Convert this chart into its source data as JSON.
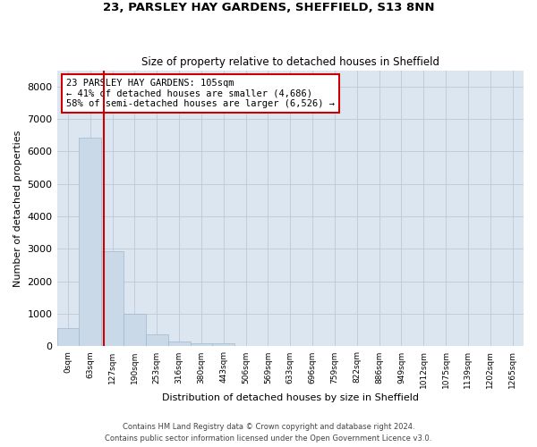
{
  "title1": "23, PARSLEY HAY GARDENS, SHEFFIELD, S13 8NN",
  "title2": "Size of property relative to detached houses in Sheffield",
  "xlabel": "Distribution of detached houses by size in Sheffield",
  "ylabel": "Number of detached properties",
  "bar_labels": [
    "0sqm",
    "63sqm",
    "127sqm",
    "190sqm",
    "253sqm",
    "316sqm",
    "380sqm",
    "443sqm",
    "506sqm",
    "569sqm",
    "633sqm",
    "696sqm",
    "759sqm",
    "822sqm",
    "886sqm",
    "949sqm",
    "1012sqm",
    "1075sqm",
    "1139sqm",
    "1202sqm",
    "1265sqm"
  ],
  "bar_heights": [
    570,
    6420,
    2920,
    990,
    360,
    155,
    100,
    100,
    0,
    0,
    0,
    0,
    0,
    0,
    0,
    0,
    0,
    0,
    0,
    0,
    0
  ],
  "bar_color": "#c9d9e8",
  "bar_edge_color": "#a0b8cc",
  "vline_x": 1.62,
  "vline_color": "#cc0000",
  "annotation_title": "23 PARSLEY HAY GARDENS: 105sqm",
  "annotation_line1": "← 41% of detached houses are smaller (4,686)",
  "annotation_line2": "58% of semi-detached houses are larger (6,526) →",
  "annotation_box_color": "#cc0000",
  "ylim": [
    0,
    8500
  ],
  "yticks": [
    0,
    1000,
    2000,
    3000,
    4000,
    5000,
    6000,
    7000,
    8000
  ],
  "background_color": "#ffffff",
  "grid_color": "#c0c8d8",
  "footer1": "Contains HM Land Registry data © Crown copyright and database right 2024.",
  "footer2": "Contains public sector information licensed under the Open Government Licence v3.0.",
  "fig_width": 6.0,
  "fig_height": 5.0,
  "dpi": 100
}
